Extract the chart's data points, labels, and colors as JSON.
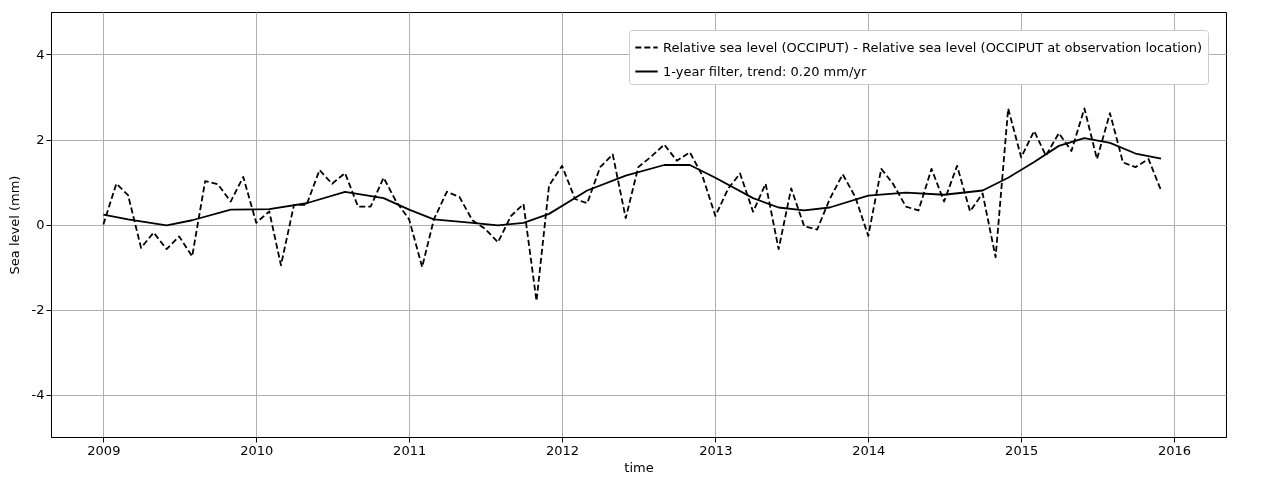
{
  "chart_data": {
    "type": "line",
    "xlabel": "time",
    "ylabel": "Sea level (mm)",
    "xlim": [
      "2008-08-29",
      "2016-05-04"
    ],
    "xticks": [
      {
        "value": "2009",
        "label": "2009"
      },
      {
        "value": "2010",
        "label": "2010"
      },
      {
        "value": "2011",
        "label": "2011"
      },
      {
        "value": "2012",
        "label": "2012"
      },
      {
        "value": "2013",
        "label": "2013"
      },
      {
        "value": "2014",
        "label": "2014"
      },
      {
        "value": "2015",
        "label": "2015"
      },
      {
        "value": "2016",
        "label": "2016"
      }
    ],
    "ylim": [
      -5,
      5
    ],
    "yticks": [
      -4,
      -2,
      0,
      2,
      4
    ],
    "grid": true,
    "legend": "top right",
    "series": [
      {
        "name": "Relative sea level (OCCIPUT) - Relative sea level (OCCIPUT at observation location)",
        "color": "#000000",
        "line_style": "dashed",
        "x": [
          "2009-01",
          "2009-02",
          "2009-03",
          "2009-04",
          "2009-05",
          "2009-06",
          "2009-07",
          "2009-08",
          "2009-09",
          "2009-10",
          "2009-11",
          "2009-12",
          "2010-01",
          "2010-02",
          "2010-03",
          "2010-04",
          "2010-05",
          "2010-06",
          "2010-07",
          "2010-08",
          "2010-09",
          "2010-10",
          "2010-11",
          "2010-12",
          "2011-01",
          "2011-02",
          "2011-03",
          "2011-04",
          "2011-05",
          "2011-06",
          "2011-07",
          "2011-08",
          "2011-09",
          "2011-10",
          "2011-11",
          "2011-12",
          "2012-01",
          "2012-02",
          "2012-03",
          "2012-04",
          "2012-05",
          "2012-06",
          "2012-07",
          "2012-08",
          "2012-09",
          "2012-10",
          "2012-11",
          "2012-12",
          "2013-01",
          "2013-02",
          "2013-03",
          "2013-04",
          "2013-05",
          "2013-06",
          "2013-07",
          "2013-08",
          "2013-09",
          "2013-10",
          "2013-11",
          "2013-12",
          "2014-01",
          "2014-02",
          "2014-03",
          "2014-04",
          "2014-05",
          "2014-06",
          "2014-07",
          "2014-08",
          "2014-09",
          "2014-10",
          "2014-11",
          "2014-12",
          "2015-01",
          "2015-02",
          "2015-03",
          "2015-04",
          "2015-05",
          "2015-06",
          "2015-07",
          "2015-08",
          "2015-09",
          "2015-10",
          "2015-11",
          "2015-12"
        ],
        "values": [
          0.0,
          0.96,
          0.69,
          -0.55,
          -0.19,
          -0.58,
          -0.28,
          -0.75,
          1.02,
          0.95,
          0.54,
          1.12,
          0.04,
          0.31,
          -0.96,
          0.46,
          0.46,
          1.28,
          0.96,
          1.21,
          0.42,
          0.42,
          1.1,
          0.54,
          0.12,
          -1.0,
          0.12,
          0.77,
          0.65,
          0.1,
          -0.1,
          -0.42,
          0.2,
          0.48,
          -1.8,
          0.92,
          1.38,
          0.6,
          0.5,
          1.35,
          1.65,
          0.15,
          1.35,
          1.6,
          1.88,
          1.5,
          1.7,
          1.15,
          0.2,
          0.85,
          1.2,
          0.3,
          0.96,
          -0.58,
          0.85,
          -0.04,
          -0.12,
          0.6,
          1.18,
          0.65,
          -0.27,
          1.31,
          0.96,
          0.42,
          0.33,
          1.31,
          0.54,
          1.38,
          0.31,
          0.73,
          -0.77,
          2.73,
          1.58,
          2.2,
          1.62,
          2.15,
          1.73,
          2.73,
          1.54,
          2.62,
          1.46,
          1.35,
          1.54,
          0.8
        ]
      },
      {
        "name": "1-year filter, trend: 0.20 mm/yr",
        "color": "#000000",
        "line_style": "solid",
        "x": [
          "2009-01",
          "2009-03",
          "2009-06",
          "2009-08",
          "2009-11",
          "2010-02",
          "2010-05",
          "2010-08",
          "2010-11",
          "2011-01",
          "2011-03",
          "2011-06",
          "2011-08",
          "2011-10",
          "2011-12",
          "2012-03",
          "2012-06",
          "2012-09",
          "2012-11",
          "2013-01",
          "2013-04",
          "2013-06",
          "2013-08",
          "2013-10",
          "2014-01",
          "2014-04",
          "2014-07",
          "2014-10",
          "2014-12",
          "2015-02",
          "2015-04",
          "2015-06",
          "2015-08",
          "2015-10",
          "2015-12"
        ],
        "values": [
          0.23,
          0.12,
          -0.02,
          0.1,
          0.35,
          0.36,
          0.5,
          0.77,
          0.62,
          0.35,
          0.12,
          0.04,
          -0.02,
          0.04,
          0.25,
          0.8,
          1.15,
          1.4,
          1.4,
          1.1,
          0.62,
          0.4,
          0.33,
          0.4,
          0.68,
          0.75,
          0.7,
          0.8,
          1.1,
          1.47,
          1.85,
          2.03,
          1.92,
          1.67,
          1.55
        ]
      }
    ]
  }
}
